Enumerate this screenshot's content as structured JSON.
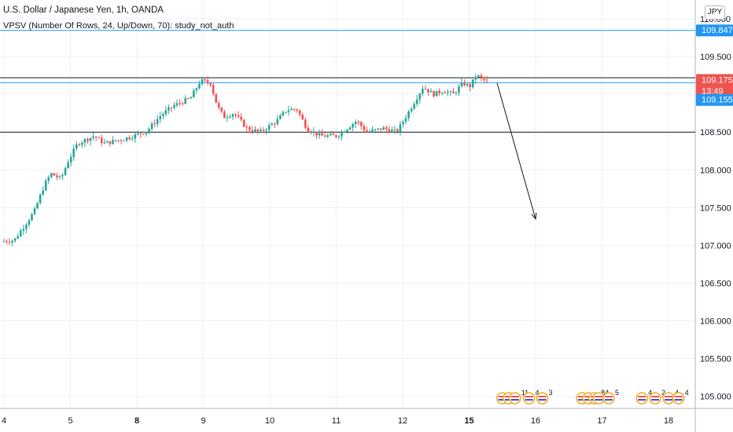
{
  "header": {
    "title": "U.S. Dollar / Japanese Yen, 1h, OANDA",
    "indicator": "VPSV (Number Of Rows, 24, Up/Down, 70): study_not_auth",
    "currency": "JPY"
  },
  "colors": {
    "up": "#26a69a",
    "down": "#ef5350",
    "grid": "#eef0f4",
    "axis": "#b2b5be",
    "blue_line": "#2196f3",
    "black_line": "#131722",
    "tag_blue": "#2196f3",
    "tag_red": "#ef5350"
  },
  "chart_data": {
    "type": "candlestick",
    "ylim": [
      104.84,
      110.25
    ],
    "xlim": [
      4.0,
      18.35
    ],
    "y_ticks": [
      {
        "label": "105.000",
        "value": 105.0
      },
      {
        "label": "105.500",
        "value": 105.5
      },
      {
        "label": "106.000",
        "value": 106.0
      },
      {
        "label": "106.500",
        "value": 106.5
      },
      {
        "label": "107.000",
        "value": 107.0
      },
      {
        "label": "107.500",
        "value": 107.5
      },
      {
        "label": "108.000",
        "value": 108.0
      },
      {
        "label": "108.500",
        "value": 108.5
      },
      {
        "label": "109.000",
        "value": 109.0
      },
      {
        "label": "109.500",
        "value": 109.5
      },
      {
        "label": "110.000",
        "value": 110.0
      }
    ],
    "x_ticks": [
      {
        "label": "4",
        "value": 4.0,
        "bold": false
      },
      {
        "label": "5",
        "value": 5.0,
        "bold": false
      },
      {
        "label": "8",
        "value": 6.0,
        "bold": true
      },
      {
        "label": "9",
        "value": 7.0,
        "bold": false
      },
      {
        "label": "10",
        "value": 8.0,
        "bold": false
      },
      {
        "label": "11",
        "value": 9.0,
        "bold": false
      },
      {
        "label": "12",
        "value": 10.0,
        "bold": false
      },
      {
        "label": "15",
        "value": 11.0,
        "bold": true
      },
      {
        "label": "16",
        "value": 12.0,
        "bold": false
      },
      {
        "label": "17",
        "value": 13.0,
        "bold": false
      },
      {
        "label": "18",
        "value": 14.0,
        "bold": false
      }
    ],
    "horizontal_lines": [
      {
        "price": 109.847,
        "color": "blue"
      },
      {
        "price": 109.22,
        "color": "black"
      },
      {
        "price": 109.155,
        "color": "blue"
      },
      {
        "price": 108.5,
        "color": "black"
      }
    ],
    "price_tags": [
      {
        "label": "109.847",
        "price": 109.847,
        "color": "blue"
      },
      {
        "label": "109.175",
        "price": 109.175,
        "color": "red",
        "sub": "13:49"
      },
      {
        "label": "109.155",
        "price": 109.155,
        "color": "blue",
        "offset": 1
      }
    ],
    "arrow": {
      "from": [
        11.42,
        109.15
      ],
      "to": [
        12.0,
        107.35
      ]
    },
    "price_path": [
      [
        4.0,
        107.05
      ],
      [
        4.2,
        107.07
      ],
      [
        4.3,
        107.2
      ],
      [
        4.5,
        107.45
      ],
      [
        4.65,
        107.8
      ],
      [
        4.75,
        107.95
      ],
      [
        4.9,
        107.88
      ],
      [
        5.0,
        108.1
      ],
      [
        5.15,
        108.35
      ],
      [
        5.4,
        108.45
      ],
      [
        5.55,
        108.35
      ],
      [
        5.8,
        108.4
      ],
      [
        6.0,
        108.45
      ],
      [
        6.2,
        108.52
      ],
      [
        6.4,
        108.72
      ],
      [
        6.6,
        108.85
      ],
      [
        6.85,
        108.95
      ],
      [
        7.0,
        109.18
      ],
      [
        7.15,
        109.15
      ],
      [
        7.25,
        108.85
      ],
      [
        7.35,
        108.7
      ],
      [
        7.5,
        108.75
      ],
      [
        7.7,
        108.55
      ],
      [
        7.9,
        108.5
      ],
      [
        8.15,
        108.65
      ],
      [
        8.3,
        108.8
      ],
      [
        8.45,
        108.8
      ],
      [
        8.6,
        108.55
      ],
      [
        8.8,
        108.45
      ],
      [
        9.05,
        108.45
      ],
      [
        9.2,
        108.55
      ],
      [
        9.35,
        108.65
      ],
      [
        9.5,
        108.5
      ],
      [
        9.75,
        108.55
      ],
      [
        9.95,
        108.5
      ],
      [
        10.1,
        108.72
      ],
      [
        10.25,
        108.95
      ],
      [
        10.35,
        109.1
      ],
      [
        10.5,
        109.0
      ],
      [
        10.65,
        109.05
      ],
      [
        10.8,
        109.0
      ],
      [
        10.95,
        109.15
      ],
      [
        11.05,
        109.1
      ],
      [
        11.15,
        109.25
      ],
      [
        11.3,
        109.175
      ]
    ],
    "event_markers": [
      {
        "x": 11.5,
        "flags": 3,
        "count": "11"
      },
      {
        "x": 11.9,
        "flags": 1,
        "count": "4"
      },
      {
        "x": 12.1,
        "flags": 1,
        "count": "3"
      },
      {
        "x": 12.7,
        "flags": 3,
        "count": "8"
      },
      {
        "x": 12.95,
        "flags": 1,
        "count": "4"
      },
      {
        "x": 13.1,
        "flags": 1,
        "count": "5"
      },
      {
        "x": 13.6,
        "flags": 1,
        "count": "4"
      },
      {
        "x": 13.8,
        "flags": 1,
        "count": "2"
      },
      {
        "x": 14.0,
        "flags": 1,
        "count": "4"
      },
      {
        "x": 14.15,
        "flags": 1,
        "count": "4"
      }
    ]
  }
}
